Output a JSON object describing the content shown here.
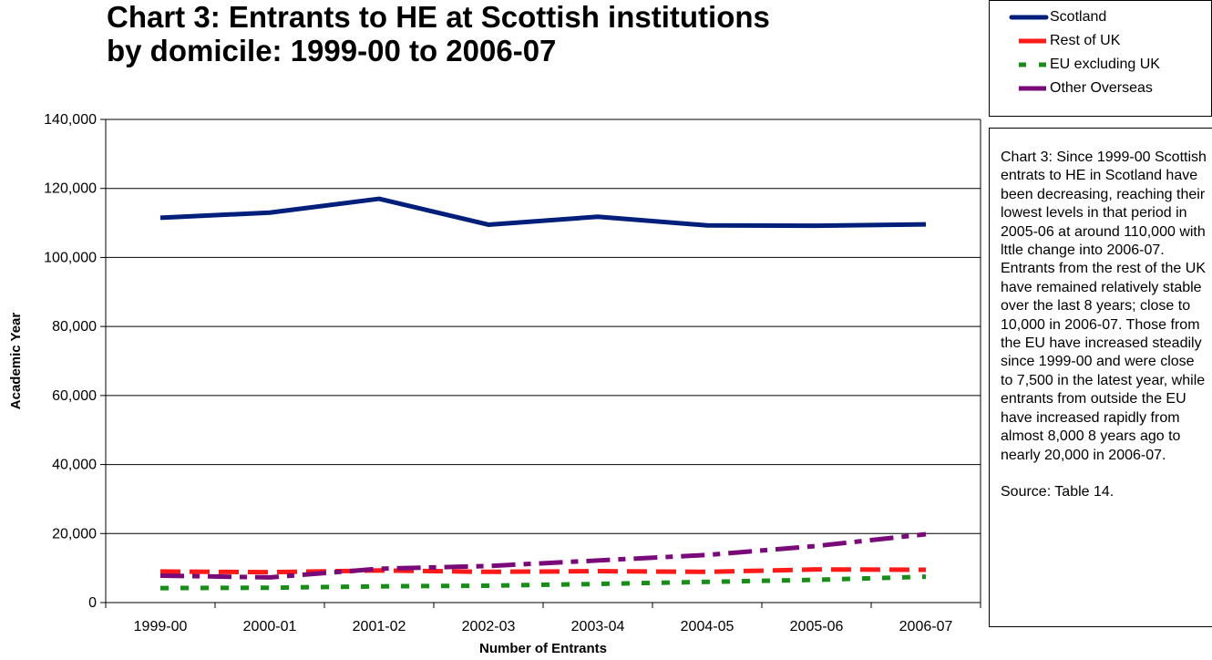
{
  "colors": {
    "scotland": "#001f7a",
    "rest_of_uk": "#ff1a1a",
    "eu": "#1a8c1a",
    "overseas": "#7a0a7a"
  },
  "legend": [
    {
      "label": "Scotland",
      "color": "#001f7a",
      "style": "solid"
    },
    {
      "label": "Rest of UK",
      "color": "#ff1a1a",
      "style": "dash"
    },
    {
      "label": "EU excluding UK",
      "color": "#1a8c1a",
      "style": "dot"
    },
    {
      "label": "Other Overseas",
      "color": "#7a0a7a",
      "style": "dashdot"
    }
  ],
  "note": {
    "text": "Chart 3:  Since 1999-00 Scottish entrats to HE in Scotland have been decreasing, reaching their lowest levels in that period in 2005-06 at around 110,000 with lttle change into 2006-07.  Entrants from the rest of the UK have remained relatively stable over the last 8 years; close to 10,000 in 2006-07.  Those from the EU have increased steadily since 1999-00 and were close to 7,500 in the latest year, while entrants from outside the EU have increased rapidly from almost 8,000 8 years ago to nearly 20,000 in 2006-07.",
    "source": "Source: Table 14."
  },
  "chart_data": {
    "type": "line",
    "title": "Chart 3: Entrants to HE at Scottish institutions by domicile: 1999-00 to 2006-07",
    "xlabel": "Number of Entrants",
    "ylabel": "Academic Year",
    "categories": [
      "1999-00",
      "2000-01",
      "2001-02",
      "2002-03",
      "2003-04",
      "2004-05",
      "2005-06",
      "2006-07"
    ],
    "ylim": [
      0,
      140000
    ],
    "yticks": [
      0,
      20000,
      40000,
      60000,
      80000,
      100000,
      120000,
      140000
    ],
    "ytick_labels": [
      "0",
      "20,000",
      "40,000",
      "60,000",
      "80,000",
      "100,000",
      "120,000",
      "140,000"
    ],
    "grid": true,
    "legend_position": "top-right",
    "series": [
      {
        "name": "Scotland",
        "color": "#001f7a",
        "style": "solid",
        "values": [
          111500,
          113000,
          117000,
          109500,
          111800,
          109300,
          109200,
          109600
        ]
      },
      {
        "name": "Rest of UK",
        "color": "#ff1a1a",
        "style": "dash",
        "values": [
          9000,
          8800,
          9300,
          8900,
          9100,
          8900,
          9600,
          9500
        ]
      },
      {
        "name": "EU excluding UK",
        "color": "#1a8c1a",
        "style": "dot",
        "values": [
          4200,
          4300,
          4700,
          4900,
          5400,
          6000,
          6600,
          7500
        ]
      },
      {
        "name": "Other Overseas",
        "color": "#7a0a7a",
        "style": "dashdot",
        "values": [
          7800,
          7300,
          9800,
          10600,
          12200,
          13800,
          16400,
          19800
        ]
      }
    ]
  }
}
